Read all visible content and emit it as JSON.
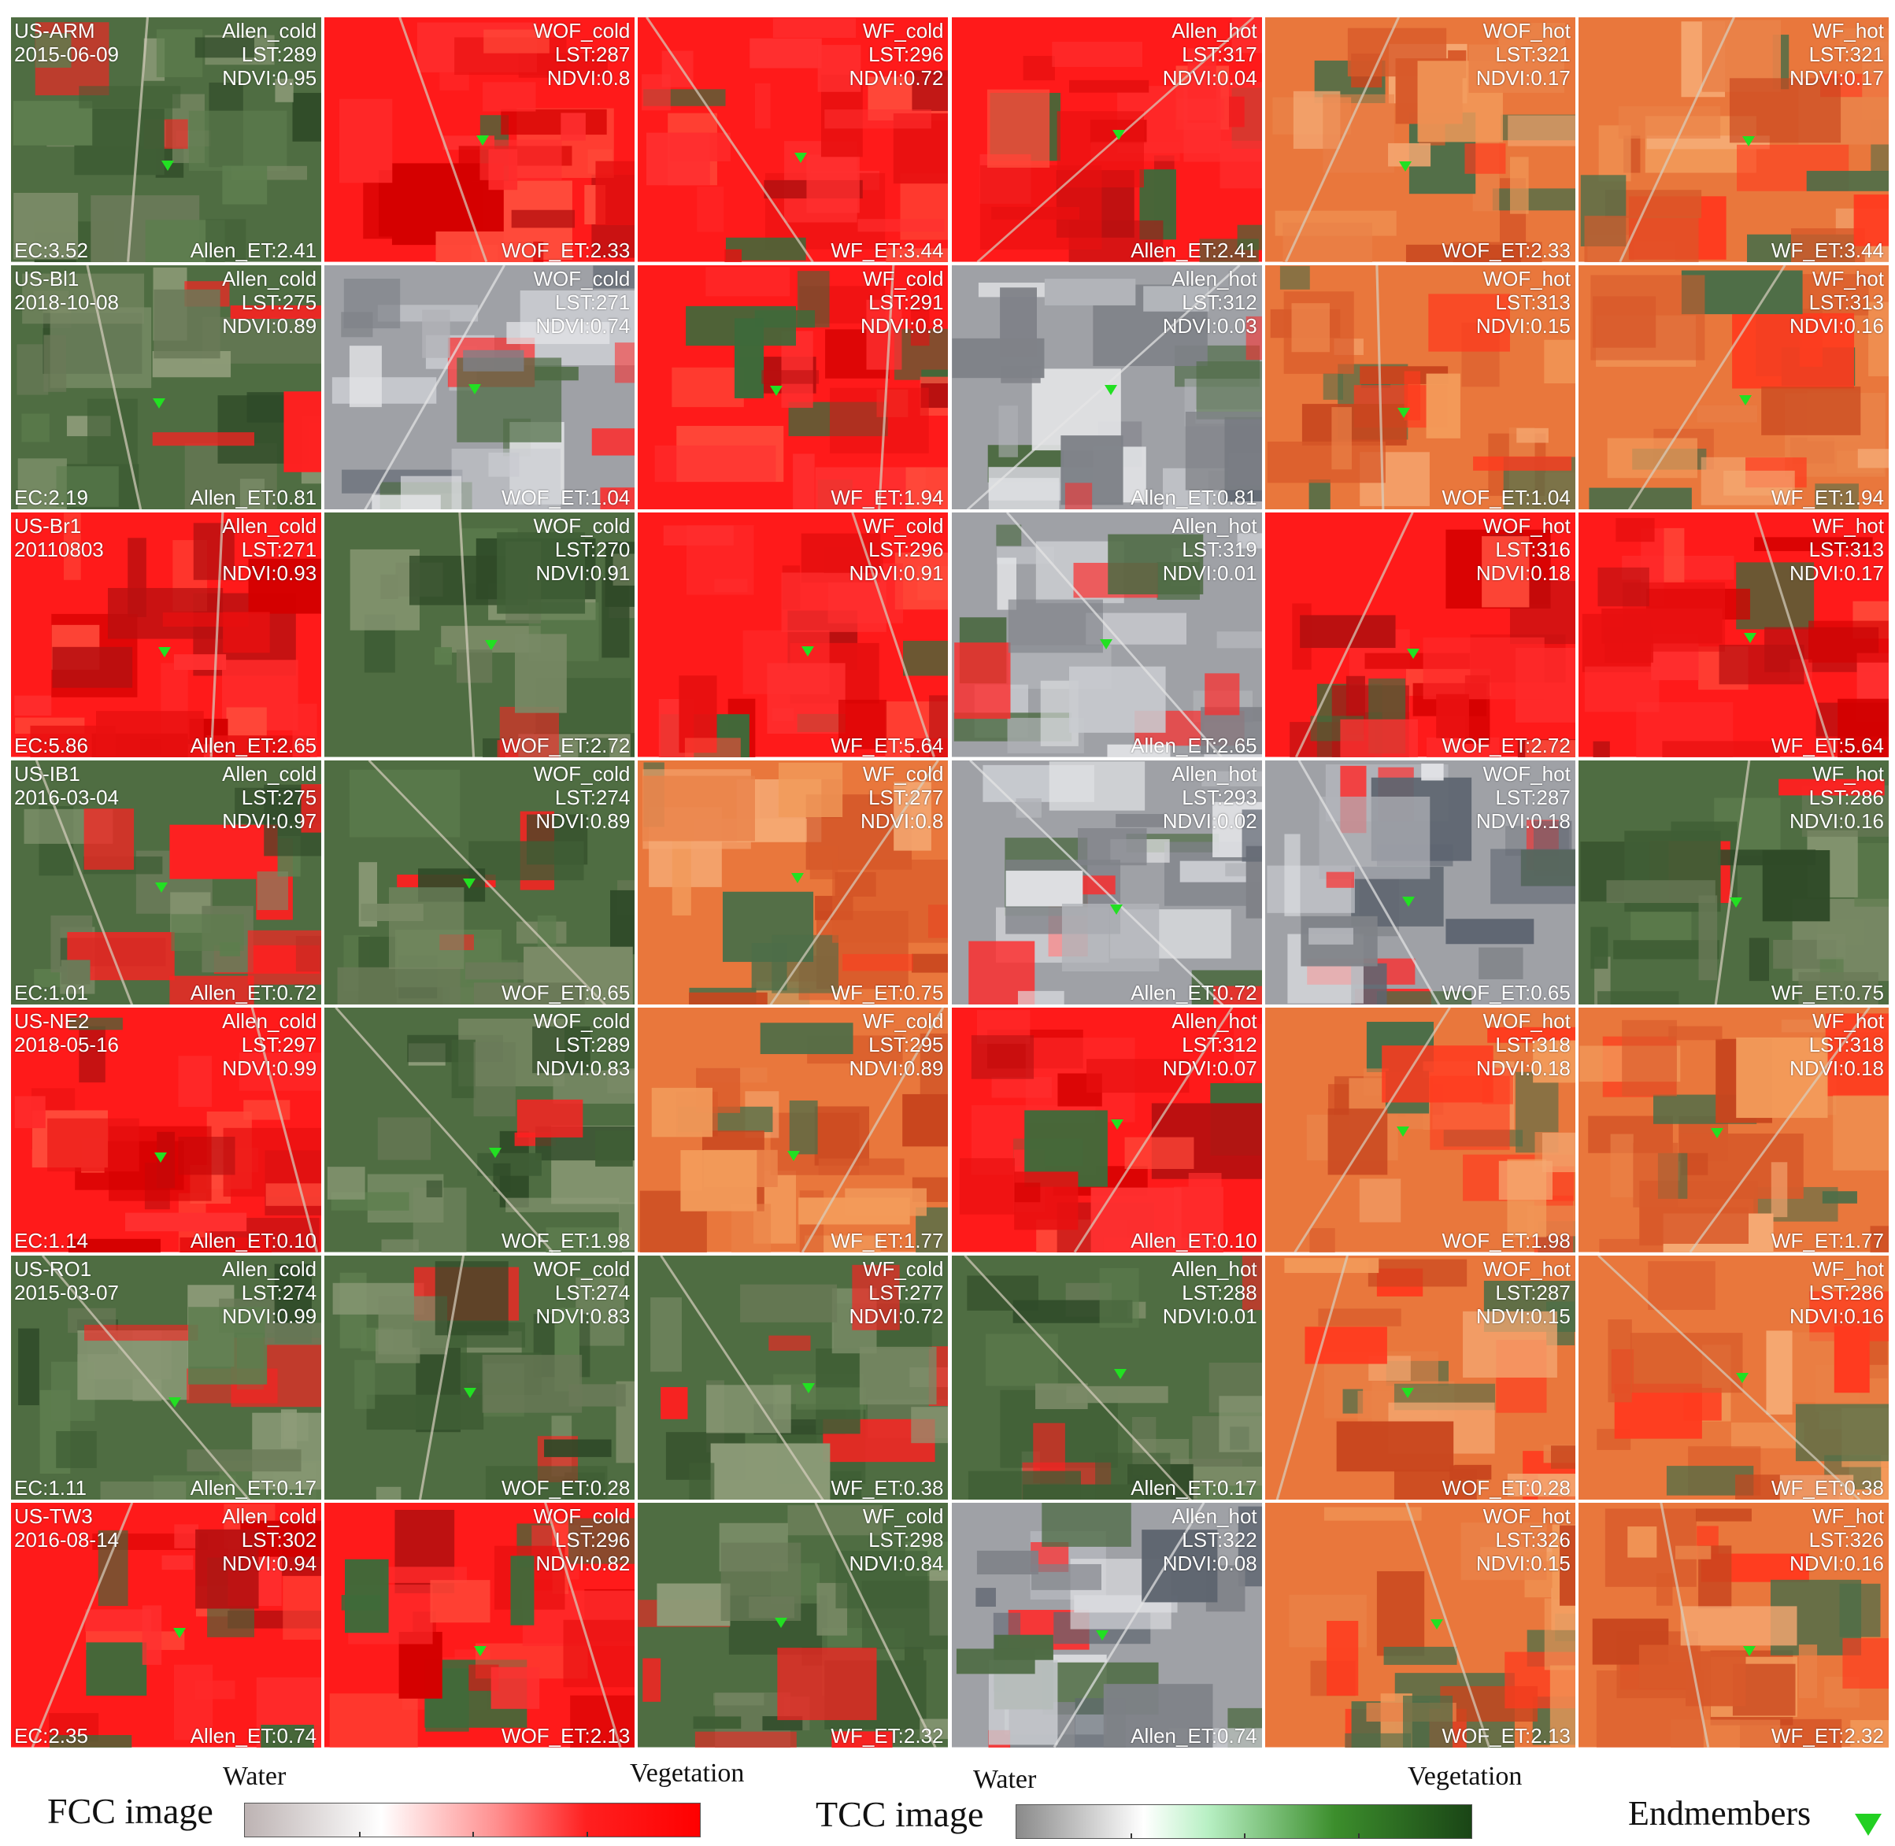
{
  "figure": {
    "columns": [
      "Allen_cold",
      "WOF_cold",
      "WF_cold",
      "Allen_hot",
      "WOF_hot",
      "WF_hot"
    ],
    "rows": [
      {
        "site": "US-ARM",
        "date": "2015-06-09",
        "ec": "EC:3.52",
        "et": [
          "Allen_ET:2.41",
          "WOF_ET:2.33",
          "WF_ET:3.44",
          "Allen_ET:2.41",
          "WOF_ET:2.33",
          "WF_ET:3.44"
        ],
        "lst": [
          "LST:289",
          "LST:287",
          "LST:296",
          "LST:317",
          "LST:321",
          "LST:321"
        ],
        "ndvi": [
          "NDVI:0.95",
          "NDVI:0.8",
          "NDVI:0.72",
          "NDVI:0.04",
          "NDVI:0.17",
          "NDVI:0.17"
        ]
      },
      {
        "site": "US-Bl1",
        "date": "2018-10-08",
        "ec": "EC:2.19",
        "et": [
          "Allen_ET:0.81",
          "WOF_ET:1.04",
          "WF_ET:1.94",
          "Allen_ET:0.81",
          "WOF_ET:1.04",
          "WF_ET:1.94"
        ],
        "lst": [
          "LST:275",
          "LST:271",
          "LST:291",
          "LST:312",
          "LST:313",
          "LST:313"
        ],
        "ndvi": [
          "NDVI:0.89",
          "NDVI:0.74",
          "NDVI:0.8",
          "NDVI:0.03",
          "NDVI:0.15",
          "NDVI:0.16"
        ]
      },
      {
        "site": "US-Br1",
        "date": "20110803",
        "ec": "EC:5.86",
        "et": [
          "Allen_ET:2.65",
          "WOF_ET:2.72",
          "WF_ET:5.64",
          "Allen_ET:2.65",
          "WOF_ET:2.72",
          "WF_ET:5.64"
        ],
        "lst": [
          "LST:271",
          "LST:270",
          "LST:296",
          "LST:319",
          "LST:316",
          "LST:313"
        ],
        "ndvi": [
          "NDVI:0.93",
          "NDVI:0.91",
          "NDVI:0.91",
          "NDVI:0.01",
          "NDVI:0.18",
          "NDVI:0.17"
        ]
      },
      {
        "site": "US-IB1",
        "date": "2016-03-04",
        "ec": "EC:1.01",
        "et": [
          "Allen_ET:0.72",
          "WOF_ET:0.65",
          "WF_ET:0.75",
          "Allen_ET:0.72",
          "WOF_ET:0.65",
          "WF_ET:0.75"
        ],
        "lst": [
          "LST:275",
          "LST:274",
          "LST:277",
          "LST:293",
          "LST:287",
          "LST:286"
        ],
        "ndvi": [
          "NDVI:0.97",
          "NDVI:0.89",
          "NDVI:0.8",
          "NDVI:0.02",
          "NDVI:0.18",
          "NDVI:0.16"
        ]
      },
      {
        "site": "US-NE2",
        "date": "2018-05-16",
        "ec": "EC:1.14",
        "et": [
          "Allen_ET:0.10",
          "WOF_ET:1.98",
          "WF_ET:1.77",
          "Allen_ET:0.10",
          "WOF_ET:1.98",
          "WF_ET:1.77"
        ],
        "lst": [
          "LST:297",
          "LST:289",
          "LST:295",
          "LST:312",
          "LST:318",
          "LST:318"
        ],
        "ndvi": [
          "NDVI:0.99",
          "NDVI:0.83",
          "NDVI:0.89",
          "NDVI:0.07",
          "NDVI:0.18",
          "NDVI:0.18"
        ]
      },
      {
        "site": "US-RO1",
        "date": "2015-03-07",
        "ec": "EC:1.11",
        "et": [
          "Allen_ET:0.17",
          "WOF_ET:0.28",
          "WF_ET:0.38",
          "Allen_ET:0.17",
          "WOF_ET:0.28",
          "WF_ET:0.38"
        ],
        "lst": [
          "LST:274",
          "LST:274",
          "LST:277",
          "LST:288",
          "LST:287",
          "LST:286"
        ],
        "ndvi": [
          "NDVI:0.99",
          "NDVI:0.83",
          "NDVI:0.72",
          "NDVI:0.01",
          "NDVI:0.15",
          "NDVI:0.16"
        ]
      },
      {
        "site": "US-TW3",
        "date": "2016-08-14",
        "ec": "EC:2.35",
        "et": [
          "Allen_ET:0.74",
          "WOF_ET:2.13",
          "WF_ET:2.32",
          "Allen_ET:0.74",
          "WOF_ET:2.13",
          "WF_ET:2.32"
        ],
        "lst": [
          "LST:302",
          "LST:296",
          "LST:298",
          "LST:322",
          "LST:326",
          "LST:326"
        ],
        "ndvi": [
          "NDVI:0.94",
          "NDVI:0.82",
          "NDVI:0.84",
          "NDVI:0.08",
          "NDVI:0.15",
          "NDVI:0.16"
        ]
      }
    ],
    "styles": {
      "_comment_types": "r=red FCC dominant, o=orange/salmon FCC, g=green TCC vegetation, u=urban grey",
      "grid": [
        [
          "g",
          "r",
          "r",
          "r",
          "o",
          "o"
        ],
        [
          "g",
          "u",
          "r",
          "u",
          "o",
          "o"
        ],
        [
          "r",
          "g",
          "r",
          "u",
          "r",
          "r"
        ],
        [
          "g",
          "g",
          "o",
          "u",
          "u",
          "g"
        ],
        [
          "r",
          "g",
          "o",
          "r",
          "o",
          "o"
        ],
        [
          "g",
          "g",
          "g",
          "g",
          "o",
          "o"
        ],
        [
          "r",
          "r",
          "g",
          "u",
          "o",
          "o"
        ]
      ]
    }
  },
  "legend": {
    "fcc_title": "FCC image",
    "tcc_title": "TCC image",
    "water": "Water",
    "vegetation": "Vegetation",
    "endmembers": "Endmembers"
  },
  "colors": {
    "marker": "#22e022",
    "fcc_red": "#ff1a1a",
    "fcc_orange": "#e8703a",
    "tcc_green": "#3d6b34",
    "urban_grey": "#9a9aa0"
  }
}
